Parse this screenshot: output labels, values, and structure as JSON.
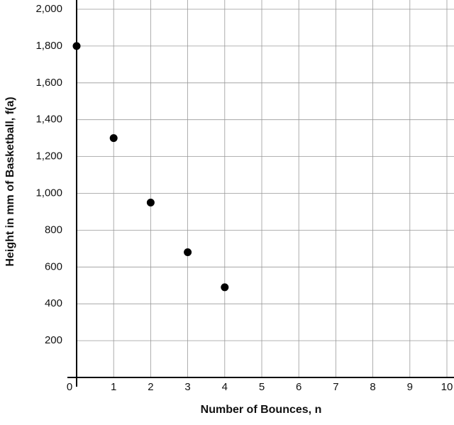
{
  "chart_data": {
    "type": "scatter",
    "xlabel": "Number of Bounces, n",
    "ylabel": "Height in mm of Basketball, f(a)",
    "x": [
      0,
      1,
      2,
      3,
      4
    ],
    "values": [
      1800,
      1300,
      950,
      680,
      490
    ],
    "color": "#000000",
    "xlim": [
      0,
      10
    ],
    "xticks": [
      0,
      1,
      2,
      3,
      4,
      5,
      6,
      7,
      8,
      9,
      10
    ],
    "ylim": [
      0,
      2000
    ],
    "yticks": [
      200,
      400,
      600,
      800,
      {
        "value": 1000,
        "label": "1,000"
      },
      {
        "value": 1200,
        "label": "1,200"
      },
      {
        "value": 1400,
        "label": "1,400"
      },
      {
        "value": 1600,
        "label": "1,600"
      },
      {
        "value": 1800,
        "label": "1,800"
      },
      {
        "value": 2000,
        "label": "2,000"
      }
    ],
    "grid": true
  }
}
